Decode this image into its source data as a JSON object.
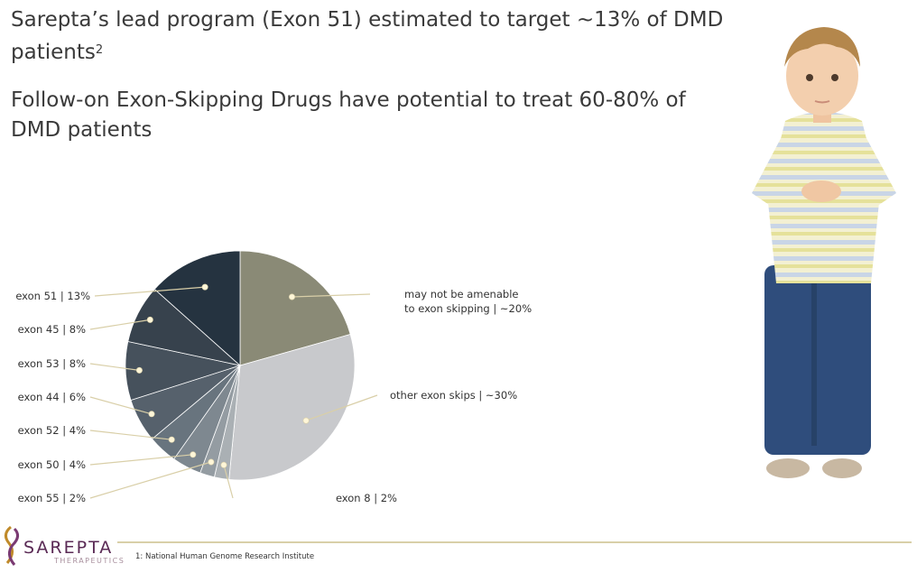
{
  "headline": {
    "line1": "Sarepta’s lead program (Exon 51) estimated to target ~13% of DMD patients",
    "line1_sup": "2",
    "line2": "Follow-on Exon-Skipping Drugs have potential to treat 60-80% of DMD patients"
  },
  "chart_data": {
    "type": "pie",
    "title": "",
    "slices": [
      {
        "label": "may not be amenable to exon skipping | ~20%",
        "label_lines": [
          "may not be amenable",
          "to exon skipping | ~20%"
        ],
        "value": 20,
        "color": "#8a8a76"
      },
      {
        "label": "other exon skips | ~30%",
        "label_lines": [
          "other exon skips | ~30%"
        ],
        "value": 30,
        "color": "#c8c9cc"
      },
      {
        "label": "exon 8 | 2%",
        "label_lines": [
          "exon 8 | 2%"
        ],
        "value": 2,
        "color": "#aab0b4"
      },
      {
        "label": "exon 55 | 2%",
        "label_lines": [
          "exon 55 | 2%"
        ],
        "value": 2,
        "color": "#949ca2"
      },
      {
        "label": "exon 50 | 4%",
        "label_lines": [
          "exon 50 | 4%"
        ],
        "value": 4,
        "color": "#7e8890"
      },
      {
        "label": "exon 52 | 4%",
        "label_lines": [
          "exon 52 | 4%"
        ],
        "value": 4,
        "color": "#68747e"
      },
      {
        "label": "exon 44 | 6%",
        "label_lines": [
          "exon 44 | 6%"
        ],
        "value": 6,
        "color": "#56616c"
      },
      {
        "label": "exon 53 | 8%",
        "label_lines": [
          "exon 53 | 8%"
        ],
        "value": 8,
        "color": "#46515c"
      },
      {
        "label": "exon 45 | 8%",
        "label_lines": [
          "exon 45 | 8%"
        ],
        "value": 8,
        "color": "#37424d"
      },
      {
        "label": "exon 51 | 13%",
        "label_lines": [
          "exon 51 | 13%"
        ],
        "value": 13,
        "color": "#253340"
      }
    ]
  },
  "footer": {
    "brand": "SAREPTA",
    "brand_sub": "THERAPEUTICS",
    "footnote": "1: National Human Genome Research Institute"
  },
  "colors": {
    "headline": "#3a3a3a",
    "leader": "#d9cfa8",
    "dot": "#fff6d8",
    "brand": "#5a2a55"
  }
}
